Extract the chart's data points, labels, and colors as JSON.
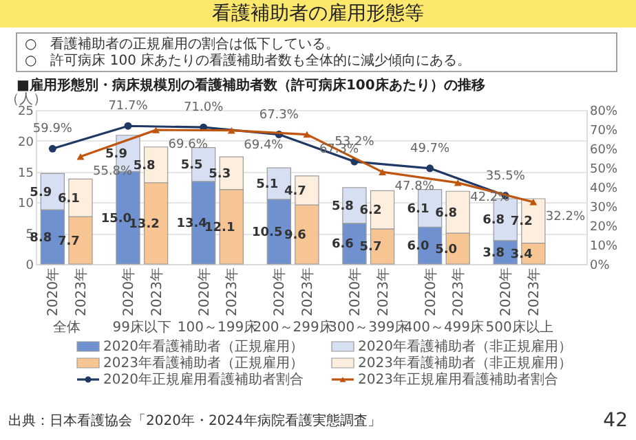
{
  "chart_data": {
    "type": "bar",
    "title": "看護補助者の雇用形態等",
    "subtitle": "■雇用形態別・病床規模別の看護補助者数（許可病床100床あたり）の推移",
    "ylabel": "（人）",
    "categories": [
      "2020年",
      "2023年",
      "2020年",
      "2023年",
      "2020年",
      "2023年",
      "2020年",
      "2023年",
      "2020年",
      "2023年",
      "2020年",
      "2023年",
      "2020年",
      "2023年"
    ],
    "series": [
      {
        "name": "2020年看護補助者（正規雇用）",
        "color": "#6f91d0",
        "values": [
          8.8,
          null,
          15.0,
          null,
          13.4,
          null,
          10.5,
          null,
          6.6,
          null,
          6.0,
          null,
          3.8,
          null
        ],
        "value_labels": [
          "8.8",
          null,
          "15.0",
          null,
          "13.4",
          null,
          "10.5",
          null,
          "6.6",
          null,
          "6.0",
          null,
          "3.8",
          null
        ]
      },
      {
        "name": "2020年看護補助者（非正規雇用）",
        "color": "#d6e0f2",
        "values": [
          5.9,
          null,
          5.9,
          null,
          5.5,
          null,
          5.1,
          null,
          5.8,
          null,
          6.1,
          null,
          6.8,
          null
        ],
        "value_labels": [
          "5.9",
          null,
          "5.9",
          null,
          "5.5",
          null,
          "5.1",
          null,
          "5.8",
          null,
          "6.1",
          null,
          "6.8",
          null
        ]
      },
      {
        "name": "2023年看護補助者（正規雇用）",
        "color": "#f7c594",
        "values": [
          null,
          7.7,
          null,
          13.2,
          null,
          12.1,
          null,
          9.6,
          null,
          5.7,
          null,
          5.0,
          null,
          3.4
        ],
        "value_labels": [
          null,
          "7.7",
          null,
          "13.2",
          null,
          "12.1",
          null,
          "9.6",
          null,
          "5.7",
          null,
          "5.0",
          null,
          "3.4"
        ]
      },
      {
        "name": "2023年看護補助者（非正規雇用）",
        "color": "#fdeede",
        "values": [
          null,
          6.1,
          null,
          5.8,
          null,
          5.3,
          null,
          4.7,
          null,
          6.2,
          null,
          6.8,
          null,
          7.2
        ],
        "value_labels": [
          null,
          "6.1",
          null,
          "5.8",
          null,
          "5.3",
          null,
          "4.7",
          null,
          "6.2",
          null,
          "6.8",
          null,
          "7.2"
        ]
      },
      {
        "name": "2020年正規雇用看護補助者割合",
        "type": "line",
        "axis": "y2",
        "marker": "circle",
        "color": "#203864",
        "values": [
          59.9,
          null,
          71.7,
          null,
          71.0,
          null,
          67.3,
          null,
          53.2,
          null,
          49.7,
          null,
          35.5,
          null
        ],
        "value_labels": [
          "59.9%",
          null,
          "71.7%",
          null,
          "71.0%",
          null,
          "67.3%",
          null,
          "53.2%",
          null,
          "49.7%",
          null,
          "35.5%",
          null
        ]
      },
      {
        "name": "2023年正規雇用看護補助者割合",
        "type": "line",
        "axis": "y2",
        "marker": "triangle",
        "color": "#c0550f",
        "values": [
          null,
          55.8,
          null,
          69.6,
          null,
          69.4,
          null,
          67.3,
          null,
          47.8,
          null,
          42.2,
          null,
          32.2
        ],
        "value_labels": [
          null,
          "55.8%",
          null,
          "69.6%",
          null,
          "69.4%",
          null,
          "67.3%",
          null,
          "47.8%",
          null,
          "42.2%",
          null,
          "32.2%"
        ]
      }
    ],
    "stacked": true,
    "ylim": [
      0,
      25
    ],
    "yticks": [
      0,
      5,
      10,
      15,
      20,
      25
    ],
    "y2lim": [
      0,
      80
    ],
    "y2ticks": [
      {
        "value": 0,
        "label": "0%"
      },
      {
        "value": 10,
        "label": "10%"
      },
      {
        "value": 20,
        "label": "20%"
      },
      {
        "value": 30,
        "label": "30%"
      },
      {
        "value": 40,
        "label": "40%"
      },
      {
        "value": 50,
        "label": "50%"
      },
      {
        "value": 60,
        "label": "60%"
      },
      {
        "value": 70,
        "label": "70%"
      },
      {
        "value": 80,
        "label": "80%"
      }
    ],
    "grid": "y",
    "legend": "bottom",
    "annotations": [
      "○　看護補助者の正規雇用の割合は低下している。",
      "○　許可病床 100 床あたりの看護補助者数も全体的に減少傾向にある。",
      "全体",
      "99床以下",
      "100～199床",
      "200～299床",
      "300～399床",
      "400～499床",
      "500床以上",
      "出典：日本看護協会「2020年・2024年病院看護実態調査」",
      "42"
    ]
  }
}
